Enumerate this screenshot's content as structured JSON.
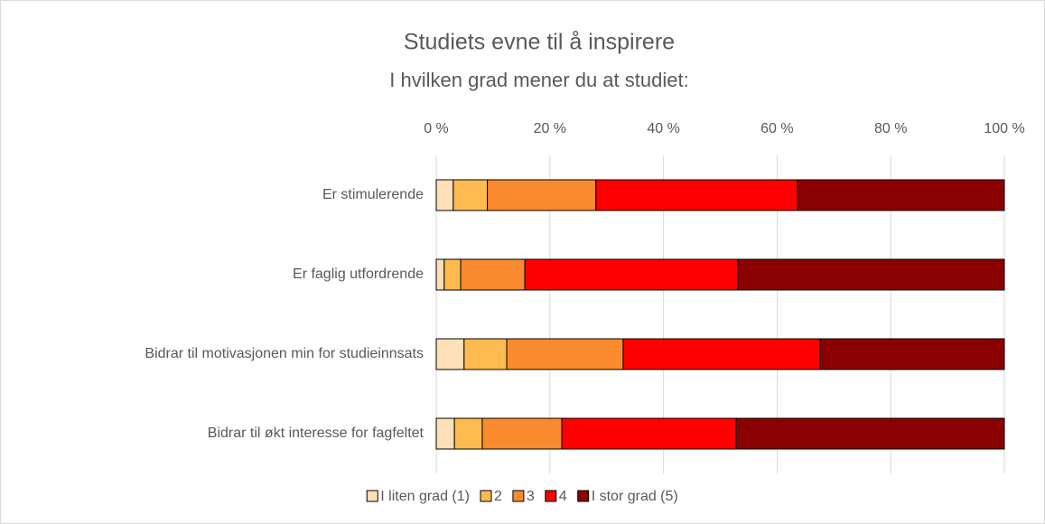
{
  "chart_data": {
    "type": "stacked_barh",
    "title": "Studiets evne til å inspirere",
    "subtitle": "I hvilken grad mener du at studiet:",
    "categories": [
      "Er stimulerende",
      "Er faglig utfordrende",
      "Bidrar til motivasjonen min for studieinnsats",
      "Bidrar til økt interesse for fagfeltet"
    ],
    "series": [
      {
        "name": "I liten grad (1)",
        "color": "#fde0b8",
        "values": [
          3.0,
          1.4,
          4.9,
          3.2
        ]
      },
      {
        "name": "2",
        "color": "#fdbb4f",
        "values": [
          6.0,
          2.9,
          7.5,
          4.9
        ]
      },
      {
        "name": "3",
        "color": "#f98a2e",
        "values": [
          19.1,
          11.3,
          20.5,
          14.0
        ]
      },
      {
        "name": "4",
        "color": "#fe0000",
        "values": [
          35.5,
          37.5,
          34.7,
          30.7
        ]
      },
      {
        "name": "I stor grad (5)",
        "color": "#8b0000",
        "values": [
          36.4,
          46.9,
          32.4,
          47.2
        ]
      }
    ],
    "xlim": [
      0,
      100
    ],
    "xticks": [
      {
        "value": 0,
        "label": "0 %"
      },
      {
        "value": 20,
        "label": "20 %"
      },
      {
        "value": 40,
        "label": "40 %"
      },
      {
        "value": 60,
        "label": "60 %"
      },
      {
        "value": 80,
        "label": "80 %"
      },
      {
        "value": 100,
        "label": "100 %"
      }
    ],
    "grid": true,
    "legend": "bottom"
  }
}
